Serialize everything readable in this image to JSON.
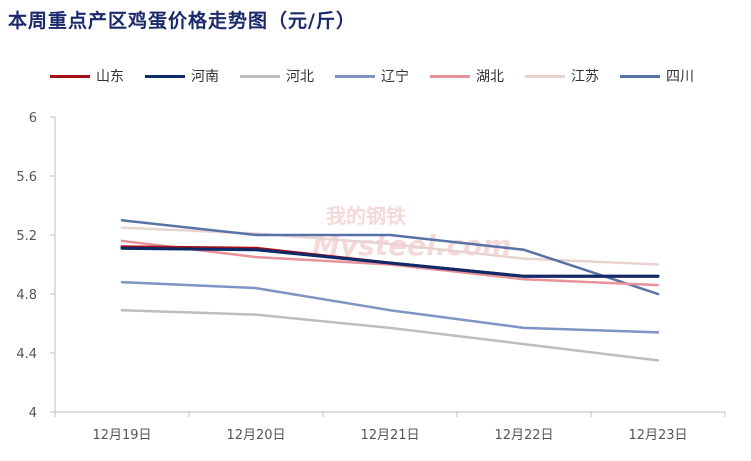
{
  "chart_data": {
    "type": "line",
    "title": "本周重点产区鸡蛋价格走势图（元/斤）",
    "categories": [
      "12月19日",
      "12月20日",
      "12月21日",
      "12月22日",
      "12月23日"
    ],
    "ylim": [
      4,
      6
    ],
    "yticks": [
      "4",
      "4.4",
      "4.8",
      "5.2",
      "5.6",
      "6"
    ],
    "grid": false,
    "legend_position": "top",
    "series": [
      {
        "name": "山东",
        "color": "#a50f15",
        "values": [
          5.12,
          5.11,
          5.01,
          4.92,
          4.92
        ]
      },
      {
        "name": "河南",
        "color": "#0d2b6b",
        "values": [
          5.11,
          5.1,
          5.01,
          4.92,
          4.92
        ]
      },
      {
        "name": "河北",
        "color": "#bdbdbd",
        "values": [
          4.69,
          4.66,
          4.57,
          4.46,
          4.35
        ]
      },
      {
        "name": "辽宁",
        "color": "#7f93c4",
        "values": [
          4.88,
          4.84,
          4.69,
          4.57,
          4.54
        ]
      },
      {
        "name": "湖北",
        "color": "#e8939a",
        "values": [
          5.16,
          5.05,
          5.0,
          4.9,
          4.86
        ]
      },
      {
        "name": "江苏",
        "color": "#e9d3d0",
        "values": [
          5.25,
          5.21,
          5.14,
          5.04,
          5.0
        ]
      },
      {
        "name": "四川",
        "color": "#5872a8",
        "values": [
          5.3,
          5.2,
          5.2,
          5.1,
          4.8
        ]
      }
    ]
  },
  "watermark": {
    "top": "我的钢铁",
    "text": "Mysteel.com"
  }
}
